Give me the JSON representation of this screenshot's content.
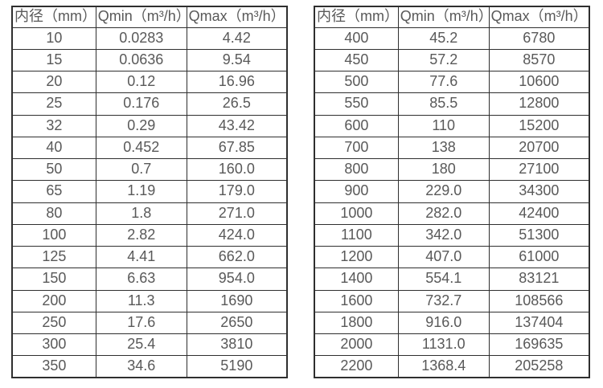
{
  "colors": {
    "border": "#2f2f2f",
    "text": "#595959",
    "background": "#ffffff"
  },
  "tables": [
    {
      "name": "flow-rate-table-small-diameters",
      "headers": [
        "内径（mm）",
        "Qmin（m³/h）",
        "Qmax（m³/h）"
      ],
      "rows": [
        [
          "10",
          "0.0283",
          "4.42"
        ],
        [
          "15",
          "0.0636",
          "9.54"
        ],
        [
          "20",
          "0.12",
          "16.96"
        ],
        [
          "25",
          "0.176",
          "26.5"
        ],
        [
          "32",
          "0.29",
          "43.42"
        ],
        [
          "40",
          "0.452",
          "67.85"
        ],
        [
          "50",
          "0.7",
          "160.0"
        ],
        [
          "65",
          "1.19",
          "179.0"
        ],
        [
          "80",
          "1.8",
          "271.0"
        ],
        [
          "100",
          "2.82",
          "424.0"
        ],
        [
          "125",
          "4.41",
          "662.0"
        ],
        [
          "150",
          "6.63",
          "954.0"
        ],
        [
          "200",
          "11.3",
          "1690"
        ],
        [
          "250",
          "17.6",
          "2650"
        ],
        [
          "300",
          "25.4",
          "3810"
        ],
        [
          "350",
          "34.6",
          "5190"
        ]
      ]
    },
    {
      "name": "flow-rate-table-large-diameters",
      "headers": [
        "内径（mm）",
        "Qmin（m³/h）",
        "Qmax（m³/h）"
      ],
      "rows": [
        [
          "400",
          "45.2",
          "6780"
        ],
        [
          "450",
          "57.2",
          "8570"
        ],
        [
          "500",
          "77.6",
          "10600"
        ],
        [
          "550",
          "85.5",
          "12800"
        ],
        [
          "600",
          "110",
          "15200"
        ],
        [
          "700",
          "138",
          "20700"
        ],
        [
          "800",
          "180",
          "27100"
        ],
        [
          "900",
          "229.0",
          "34300"
        ],
        [
          "1000",
          "282.0",
          "42400"
        ],
        [
          "1100",
          "342.0",
          "51300"
        ],
        [
          "1200",
          "407.0",
          "61000"
        ],
        [
          "1400",
          "554.1",
          "83121"
        ],
        [
          "1600",
          "732.7",
          "108566"
        ],
        [
          "1800",
          "916.0",
          "137404"
        ],
        [
          "2000",
          "1131.0",
          "169635"
        ],
        [
          "2200",
          "1368.4",
          "205258"
        ]
      ]
    }
  ]
}
